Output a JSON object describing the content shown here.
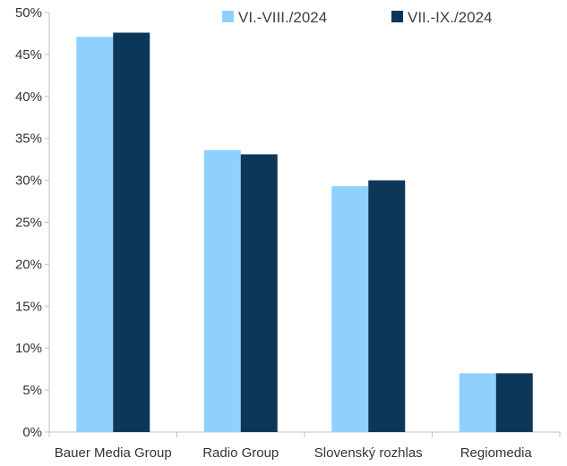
{
  "chart_data": {
    "type": "bar",
    "title": "",
    "xlabel": "",
    "ylabel": "",
    "categories": [
      "Bauer Media Group",
      "Radio Group",
      "Slovenský rozhlas",
      "Regiomedia"
    ],
    "series": [
      {
        "name": "VI.-VIII./2024",
        "color": "#8fd0ff",
        "values": [
          47.1,
          33.6,
          29.3,
          7.0
        ]
      },
      {
        "name": "VII.-IX./2024",
        "color": "#0d3758",
        "values": [
          47.6,
          33.1,
          30.0,
          7.0
        ]
      }
    ],
    "ylim": [
      0,
      50
    ],
    "yticks": [
      "0%",
      "5%",
      "10%",
      "15%",
      "20%",
      "25%",
      "30%",
      "35%",
      "40%",
      "45%",
      "50%"
    ],
    "ytick_values": [
      0,
      5,
      10,
      15,
      20,
      25,
      30,
      35,
      40,
      45,
      50
    ],
    "grid": false,
    "legend_position": "top-right",
    "axis_color": "#bfbfbf"
  }
}
